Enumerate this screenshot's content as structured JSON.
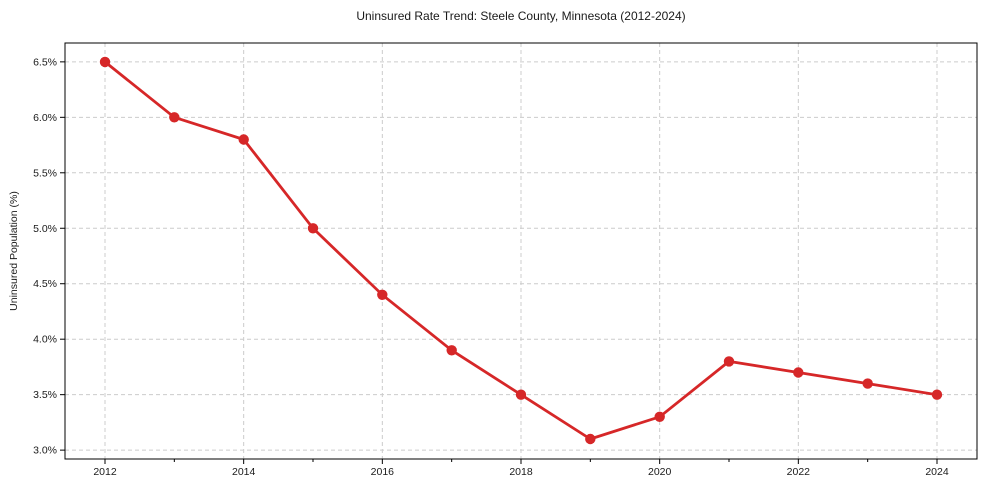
{
  "chart_data": {
    "type": "line",
    "title": "Uninsured Rate Trend: Steele County, Minnesota (2012-2024)",
    "xlabel": "",
    "ylabel": "Uninsured Population (%)",
    "x": [
      2012,
      2013,
      2014,
      2015,
      2016,
      2017,
      2018,
      2019,
      2020,
      2021,
      2022,
      2023,
      2024
    ],
    "values": [
      6.5,
      6.0,
      5.8,
      5.0,
      4.4,
      3.9,
      3.5,
      3.1,
      3.3,
      3.8,
      3.7,
      3.6,
      3.5
    ],
    "xticks": [
      2012,
      2014,
      2016,
      2018,
      2020,
      2022,
      2024
    ],
    "xtick_labels": [
      "2012",
      "2014",
      "2016",
      "2018",
      "2020",
      "2022",
      "2024"
    ],
    "minor_xticks": [
      2013,
      2015,
      2017,
      2019,
      2021,
      2023
    ],
    "yticks": [
      3.0,
      3.5,
      4.0,
      4.5,
      5.0,
      5.5,
      6.0,
      6.5
    ],
    "ytick_labels": [
      "3.0%",
      "3.5%",
      "4.0%",
      "4.5%",
      "5.0%",
      "5.5%",
      "6.0%",
      "6.5%"
    ],
    "ylim": [
      2.92,
      6.67
    ],
    "grid": true,
    "legend_position": "none",
    "colors": {
      "line": "#d62728",
      "marker": "#d62728",
      "grid": "#cccccc",
      "axis": "#000000",
      "text": "#1a1a1a",
      "background": "#ffffff"
    }
  }
}
